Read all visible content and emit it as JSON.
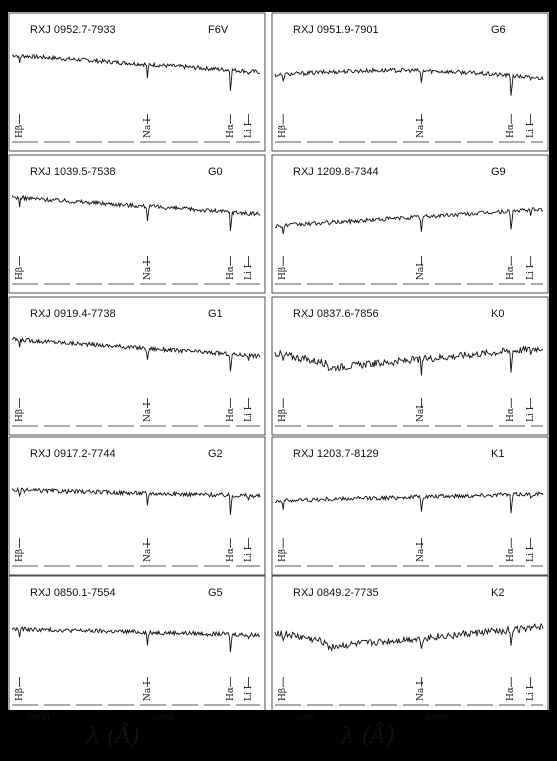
{
  "chart_data": {
    "type": "line",
    "panels": [
      {
        "star": "RXJ 0952.7-7933",
        "sptype": "F6V",
        "col": 0,
        "row": 0,
        "shape": "hot",
        "labels": [
          "Hβ",
          "Na I",
          "Hα",
          "Li I"
        ]
      },
      {
        "star": "RXJ 0951.9-7901",
        "sptype": "G6",
        "col": 1,
        "row": 0,
        "shape": "bump",
        "labels": [
          "Hβ",
          "Na I",
          "Hα",
          "Li I"
        ]
      },
      {
        "star": "RXJ 1039.5-7538",
        "sptype": "G0",
        "col": 0,
        "row": 1,
        "shape": "hot",
        "labels": [
          "Hβ",
          "Na I",
          "Hα",
          "Li I"
        ]
      },
      {
        "star": "RXJ 1209.8-7344",
        "sptype": "G9",
        "col": 1,
        "row": 1,
        "shape": "rising",
        "labels": [
          "Hβ",
          "NaI",
          "Hα",
          "Li I"
        ]
      },
      {
        "star": "RXJ 0919.4-7738",
        "sptype": "G1",
        "col": 0,
        "row": 2,
        "shape": "hot",
        "labels": [
          "Hβ",
          "Na I",
          "Hα",
          "Li I"
        ]
      },
      {
        "star": "RXJ 0837.6-7856",
        "sptype": "K0",
        "col": 1,
        "row": 2,
        "shape": "cool",
        "labels": [
          "Hβ",
          "NaI",
          "Hα",
          "Li I"
        ]
      },
      {
        "star": "RXJ 0917.2-7744",
        "sptype": "G2",
        "col": 0,
        "row": 3,
        "shape": "flat",
        "labels": [
          "Hβ",
          "Na I",
          "Hα",
          "Li I"
        ]
      },
      {
        "star": "RXJ 1203.7-8129",
        "sptype": "K1",
        "col": 1,
        "row": 3,
        "shape": "flat2",
        "labels": [
          "Hβ",
          "Na I",
          "Hα",
          "Li I"
        ]
      },
      {
        "star": "RXJ 0850.1-7554",
        "sptype": "G5",
        "col": 0,
        "row": 4,
        "shape": "flat",
        "labels": [
          "Hβ",
          "Na I",
          "Hα",
          "Li I"
        ]
      },
      {
        "star": "RXJ 0849.2-7735",
        "sptype": "K2",
        "col": 1,
        "row": 4,
        "shape": "cool",
        "labels": [
          "Hβ",
          "Na I",
          "Hα",
          "Li I"
        ]
      }
    ],
    "x_ticks": [
      5000,
      6000
    ],
    "x_range": [
      4800,
      6800
    ],
    "xlabel": "λ (Å)"
  }
}
